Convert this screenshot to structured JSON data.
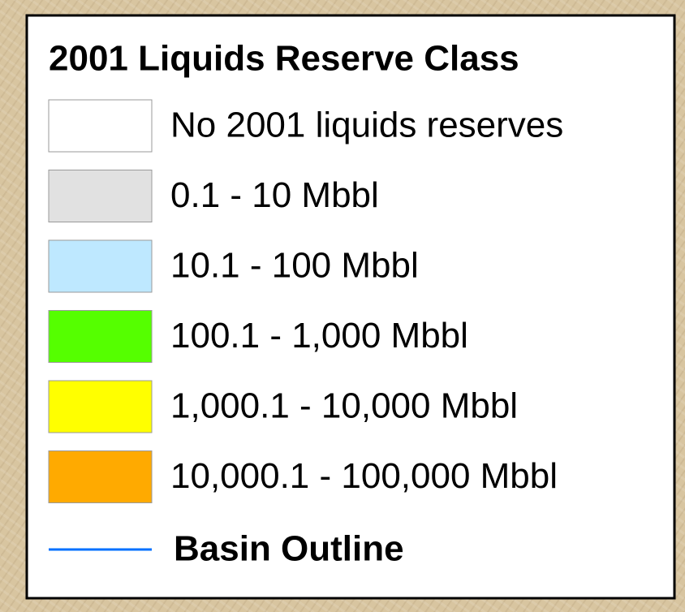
{
  "legend": {
    "title": "2001 Liquids Reserve Class",
    "items": [
      {
        "label": "No 2001 liquids reserves",
        "color": "#ffffff"
      },
      {
        "label": "0.1 - 10 Mbbl",
        "color": "#e1e1e1"
      },
      {
        "label": "10.1 - 100 Mbbl",
        "color": "#bee8ff"
      },
      {
        "label": "100.1 - 1,000 Mbbl",
        "color": "#55ff00"
      },
      {
        "label": "1,000.1 - 10,000 Mbbl",
        "color": "#ffff00"
      },
      {
        "label": "10,000.1 - 100,000 Mbbl",
        "color": "#ffaa00"
      }
    ],
    "line": {
      "label": "Basin Outline",
      "color": "#0070ff"
    }
  }
}
